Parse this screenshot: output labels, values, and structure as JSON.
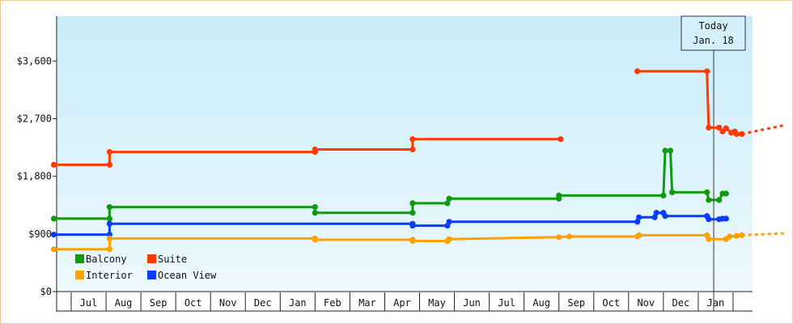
{
  "chart_data": {
    "type": "line",
    "currency_ticks": [
      "$0",
      "$900",
      "$1,800",
      "$2,700",
      "$3,600"
    ],
    "ylim": [
      0,
      4300
    ],
    "months": [
      "Jul",
      "Aug",
      "Sep",
      "Oct",
      "Nov",
      "Dec",
      "Jan",
      "Feb",
      "Mar",
      "Apr",
      "May",
      "Jun",
      "Jul",
      "Aug",
      "Sep",
      "Oct",
      "Nov",
      "Dec",
      "Jan"
    ],
    "today_marker": {
      "line1": "Today",
      "line2": "Jan. 18",
      "month_index": 18.45
    },
    "legend": [
      {
        "label": "Balcony",
        "color": "#0f9a0f"
      },
      {
        "label": "Suite",
        "color": "#ff3b00"
      },
      {
        "label": "Interior",
        "color": "#ffa200"
      },
      {
        "label": "Ocean View",
        "color": "#0a3cff"
      }
    ],
    "series": [
      {
        "name": "Suite",
        "color": "#ff3b00",
        "segments": [
          [
            [
              -0.5,
              1980
            ],
            [
              1.1,
              1980
            ],
            [
              1.1,
              2180
            ],
            [
              7.0,
              2180
            ],
            [
              7.0,
              2220
            ],
            [
              9.8,
              2220
            ],
            [
              9.8,
              2380
            ],
            [
              11.0,
              2380
            ],
            [
              14.05,
              2380
            ]
          ],
          [
            [
              16.25,
              3440
            ],
            [
              16.75,
              3440
            ],
            [
              17.0,
              3440
            ],
            [
              18.25,
              3440
            ],
            [
              18.3,
              2560
            ],
            [
              18.6,
              2560
            ],
            [
              18.7,
              2500
            ],
            [
              18.8,
              2550
            ],
            [
              18.95,
              2480
            ],
            [
              19.05,
              2500
            ],
            [
              19.1,
              2460
            ],
            [
              19.25,
              2460
            ]
          ]
        ],
        "projection": [
          [
            19.25,
            2460
          ],
          [
            20.5,
            2600
          ]
        ]
      },
      {
        "name": "Balcony",
        "color": "#0f9a0f",
        "segments": [
          [
            [
              -0.5,
              1140
            ],
            [
              1.1,
              1140
            ],
            [
              1.1,
              1320
            ],
            [
              7.0,
              1320
            ],
            [
              7.0,
              1230
            ],
            [
              9.8,
              1230
            ],
            [
              9.8,
              1380
            ],
            [
              10.2,
              1380
            ],
            [
              10.8,
              1380
            ],
            [
              10.85,
              1450
            ],
            [
              14.0,
              1450
            ],
            [
              14.0,
              1500
            ],
            [
              17.0,
              1500
            ],
            [
              17.05,
              2200
            ],
            [
              17.2,
              2200
            ],
            [
              17.25,
              1550
            ],
            [
              18.25,
              1550
            ],
            [
              18.3,
              1430
            ],
            [
              18.6,
              1430
            ],
            [
              18.7,
              1530
            ],
            [
              18.8,
              1530
            ]
          ]
        ]
      },
      {
        "name": "Ocean View",
        "color": "#0a3cff",
        "segments": [
          [
            [
              -0.5,
              890
            ],
            [
              1.1,
              890
            ],
            [
              1.1,
              1060
            ],
            [
              7.0,
              1060
            ],
            [
              9.8,
              1060
            ],
            [
              9.8,
              1030
            ],
            [
              10.8,
              1030
            ],
            [
              10.85,
              1090
            ],
            [
              14.0,
              1090
            ],
            [
              14.3,
              1090
            ],
            [
              16.25,
              1090
            ],
            [
              16.3,
              1160
            ],
            [
              16.75,
              1160
            ],
            [
              16.8,
              1230
            ],
            [
              17.0,
              1230
            ],
            [
              17.05,
              1180
            ],
            [
              18.25,
              1180
            ],
            [
              18.3,
              1130
            ],
            [
              18.6,
              1130
            ],
            [
              18.7,
              1140
            ],
            [
              18.8,
              1140
            ]
          ]
        ]
      },
      {
        "name": "Interior",
        "color": "#ffa200",
        "segments": [
          [
            [
              -0.5,
              660
            ],
            [
              1.1,
              660
            ],
            [
              1.1,
              830
            ],
            [
              7.0,
              830
            ],
            [
              7.0,
              810
            ],
            [
              9.8,
              810
            ],
            [
              9.8,
              790
            ],
            [
              10.2,
              790
            ],
            [
              10.8,
              790
            ],
            [
              10.85,
              820
            ],
            [
              14.0,
              850
            ],
            [
              14.3,
              860
            ],
            [
              16.25,
              860
            ],
            [
              16.3,
              880
            ],
            [
              18.25,
              880
            ],
            [
              18.3,
              820
            ],
            [
              18.6,
              820
            ],
            [
              18.8,
              820
            ],
            [
              18.9,
              860
            ],
            [
              19.1,
              870
            ],
            [
              19.25,
              880
            ]
          ]
        ],
        "projection": [
          [
            19.25,
            880
          ],
          [
            20.5,
            910
          ]
        ]
      }
    ]
  }
}
